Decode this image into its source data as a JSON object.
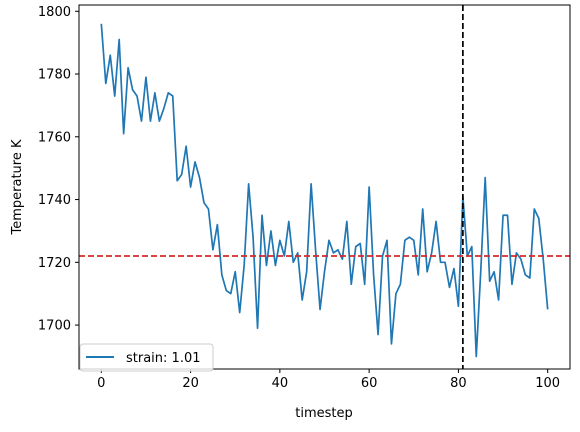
{
  "chart_data": {
    "type": "line",
    "xlabel": "timestep",
    "ylabel": "Temperature K",
    "xlim": [
      -5,
      105
    ],
    "ylim": [
      1686,
      1802
    ],
    "xticks": [
      0,
      20,
      40,
      60,
      80,
      100
    ],
    "yticks": [
      1700,
      1720,
      1740,
      1760,
      1780,
      1800
    ],
    "grid": false,
    "legend_position": "lower-left",
    "series": [
      {
        "name": "strain: 1.01",
        "color": "#1f77b4",
        "x": [
          0,
          1,
          2,
          3,
          4,
          5,
          6,
          7,
          8,
          9,
          10,
          11,
          12,
          13,
          14,
          15,
          16,
          17,
          18,
          19,
          20,
          21,
          22,
          23,
          24,
          25,
          26,
          27,
          28,
          29,
          30,
          31,
          32,
          33,
          34,
          35,
          36,
          37,
          38,
          39,
          40,
          41,
          42,
          43,
          44,
          45,
          46,
          47,
          48,
          49,
          50,
          51,
          52,
          53,
          54,
          55,
          56,
          57,
          58,
          59,
          60,
          61,
          62,
          63,
          64,
          65,
          66,
          67,
          68,
          69,
          70,
          71,
          72,
          73,
          74,
          75,
          76,
          77,
          78,
          79,
          80,
          81,
          82,
          83,
          84,
          85,
          86,
          87,
          88,
          89,
          90,
          91,
          92,
          93,
          94,
          95,
          96,
          97,
          98,
          99,
          100
        ],
        "y": [
          1796,
          1777,
          1786,
          1773,
          1791,
          1761,
          1782,
          1775,
          1773,
          1765,
          1779,
          1765,
          1774,
          1765,
          1769,
          1774,
          1773,
          1746,
          1748,
          1757,
          1744,
          1752,
          1747,
          1739,
          1737,
          1724,
          1732,
          1716,
          1711,
          1710,
          1717,
          1704,
          1719,
          1745,
          1728,
          1699,
          1735,
          1719,
          1730,
          1719,
          1727,
          1722,
          1733,
          1720,
          1723,
          1708,
          1717,
          1745,
          1724,
          1705,
          1717,
          1727,
          1723,
          1724,
          1721,
          1733,
          1713,
          1725,
          1726,
          1713,
          1744,
          1716,
          1697,
          1722,
          1727,
          1694,
          1710,
          1713,
          1727,
          1728,
          1727,
          1716,
          1737,
          1717,
          1723,
          1733,
          1720,
          1720,
          1712,
          1718,
          1706,
          1741,
          1722,
          1725,
          1690,
          1717,
          1747,
          1714,
          1717,
          1708,
          1735,
          1735,
          1713,
          1723,
          1721,
          1716,
          1715,
          1737,
          1734,
          1721,
          1705
        ]
      }
    ],
    "reference_lines": [
      {
        "orientation": "horizontal",
        "value": 1722,
        "color": "#d62728",
        "style": "dashed"
      },
      {
        "orientation": "vertical",
        "value": 81,
        "color": "#000000",
        "style": "dashed"
      }
    ]
  }
}
